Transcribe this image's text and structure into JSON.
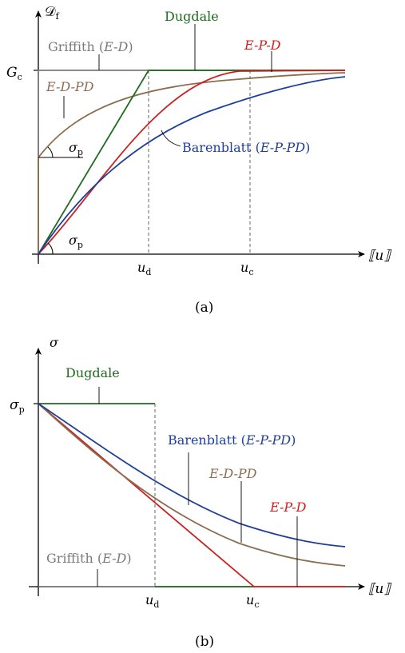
{
  "colors": {
    "griffith": "#7a7a7a",
    "dugdale": "#1f6b1f",
    "epd": "#cc1f1f",
    "edpd": "#8b6d4f",
    "barenblatt": "#1f3f99",
    "axis": "#000000"
  },
  "panel_a": {
    "caption": "(a)",
    "y_axis_label": "𝒟",
    "y_axis_sub": "f",
    "x_axis_label": "⟦u⟧",
    "gc_label": "G",
    "gc_sub": "c",
    "ud_label": "u",
    "ud_sub": "d",
    "uc_label": "u",
    "uc_sub": "c",
    "sigma_label": "σ",
    "sigma_sub": "p",
    "griffith_label": "Griffith (",
    "griffith_label_it": "E-D",
    "griffith_label_close": ")",
    "dugdale_label": "Dugdale",
    "epd_label": "E-P-D",
    "edpd_label": "E-D-PD",
    "barenblatt_label": "Barenblatt (",
    "barenblatt_label_it": "E-P-PD",
    "barenblatt_label_close": ")"
  },
  "panel_b": {
    "caption": "(b)",
    "y_axis_label": "σ",
    "x_axis_label": "⟦u⟧",
    "sigma_label": "σ",
    "sigma_sub": "p",
    "ud_label": "u",
    "ud_sub": "d",
    "uc_label": "u",
    "uc_sub": "c",
    "griffith_label": "Griffith (",
    "griffith_label_it": "E-D",
    "griffith_label_close": ")",
    "dugdale_label": "Dugdale",
    "epd_label": "E-P-D",
    "edpd_label": "E-D-PD",
    "barenblatt_label": "Barenblatt (",
    "barenblatt_label_it": "E-P-PD",
    "barenblatt_label_close": ")"
  }
}
